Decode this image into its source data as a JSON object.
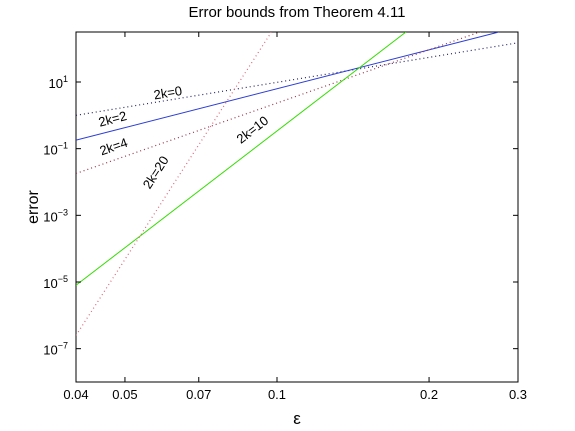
{
  "chart_data": {
    "type": "line",
    "title": "Error bounds from Theorem 4.11",
    "xlabel": "ε",
    "ylabel": "error",
    "xscale": "log",
    "yscale": "log",
    "xlim": [
      0.04,
      0.3
    ],
    "ylim": [
      1e-08,
      316
    ],
    "grid": false,
    "legend": "none",
    "x_ticks": [
      {
        "value": 0.04,
        "label": "0.04"
      },
      {
        "value": 0.05,
        "label": "0.05"
      },
      {
        "value": 0.07,
        "label": "0.07"
      },
      {
        "value": 0.1,
        "label": "0.1"
      },
      {
        "value": 0.2,
        "label": "0.2"
      },
      {
        "value": 0.3,
        "label": "0.3"
      }
    ],
    "y_ticks": [
      {
        "value": 1e-07,
        "base": "10",
        "exp": "−7"
      },
      {
        "value": 1e-05,
        "base": "10",
        "exp": "−5"
      },
      {
        "value": 0.001,
        "base": "10",
        "exp": "−3"
      },
      {
        "value": 0.1,
        "base": "10",
        "exp": "−1"
      },
      {
        "value": 10,
        "base": "10",
        "exp": "1"
      }
    ],
    "series": [
      {
        "name": "2k=0",
        "style": "dotted",
        "color": "#222266",
        "x": [
          0.04,
          0.3
        ],
        "y": [
          1.0,
          150
        ]
      },
      {
        "name": "2k=2",
        "style": "solid",
        "color": "#2a3cd6",
        "x": [
          0.04,
          0.275
        ],
        "y": [
          0.18,
          316
        ]
      },
      {
        "name": "2k=4",
        "style": "dotted",
        "color": "#99334d",
        "x": [
          0.04,
          0.3
        ],
        "y": [
          0.018,
          800
        ]
      },
      {
        "name": "2k=10",
        "style": "solid",
        "color": "#33dd00",
        "x": [
          0.04,
          0.18
        ],
        "y": [
          8e-06,
          316
        ]
      },
      {
        "name": "2k=20",
        "style": "dotted",
        "color": "#dd6677",
        "x": [
          0.04,
          0.0975
        ],
        "y": [
          2.5e-07,
          316
        ]
      }
    ],
    "annotations": [
      {
        "text": "2k=0",
        "series": "2k=0",
        "x": 0.061,
        "y": 3.5
      },
      {
        "text": "2k=2",
        "series": "2k=2",
        "x": 0.0475,
        "y": 0.58
      },
      {
        "text": "2k=4",
        "series": "2k=4",
        "x": 0.0478,
        "y": 0.086
      },
      {
        "text": "2k=10",
        "series": "2k=10",
        "x": 0.0905,
        "y": 0.29
      },
      {
        "text": "2k=20",
        "series": "2k=20",
        "x": 0.0585,
        "y": 0.0165
      }
    ]
  }
}
